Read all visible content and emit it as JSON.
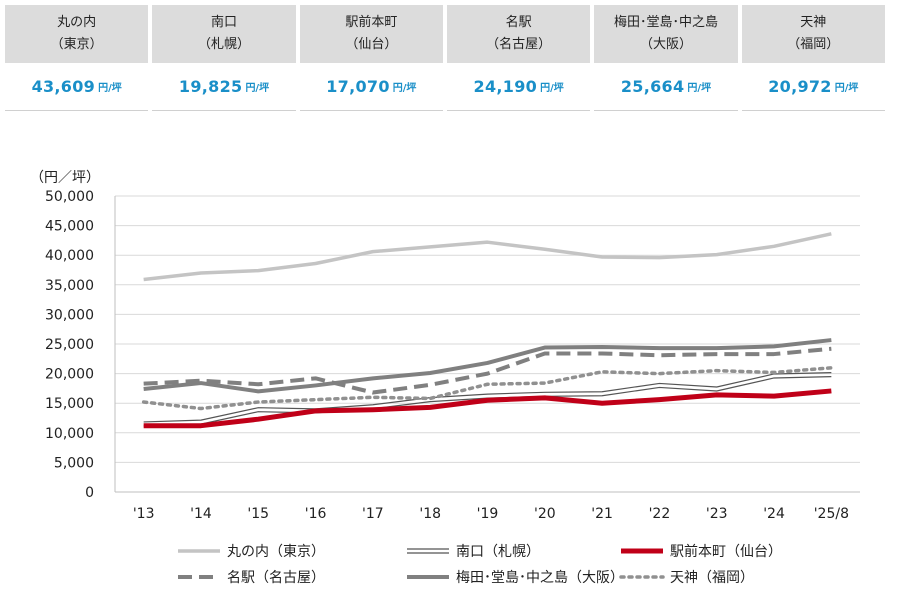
{
  "summary": [
    {
      "area": "丸の内",
      "city": "（東京）",
      "price": "43,609",
      "unit": "円/坪"
    },
    {
      "area": "南口",
      "city": "（札幌）",
      "price": "19,825",
      "unit": "円/坪"
    },
    {
      "area": "駅前本町",
      "city": "（仙台）",
      "price": "17,070",
      "unit": "円/坪"
    },
    {
      "area": "名駅",
      "city": "（名古屋）",
      "price": "24,190",
      "unit": "円/坪"
    },
    {
      "area": "梅田･堂島･中之島",
      "city": "（大阪）",
      "price": "25,664",
      "unit": "円/坪"
    },
    {
      "area": "天神",
      "city": "（福岡）",
      "price": "20,972",
      "unit": "円/坪"
    }
  ],
  "chart_data": {
    "type": "line",
    "ylabel": "（円／坪）",
    "ylim": [
      0,
      50000
    ],
    "yticks": [
      "0",
      "5,000",
      "10,000",
      "15,000",
      "20,000",
      "25,000",
      "30,000",
      "35,000",
      "40,000",
      "45,000",
      "50,000"
    ],
    "categories": [
      "'13",
      "'14",
      "'15",
      "'16",
      "'17",
      "'18",
      "'19",
      "'20",
      "'21",
      "'22",
      "'23",
      "'24",
      "'25/8"
    ],
    "grid": true,
    "series": [
      {
        "name": "丸の内（東京）",
        "style": "solid",
        "color": "#c4c4c4",
        "values": [
          35900,
          37000,
          37400,
          38600,
          40600,
          41400,
          42200,
          41000,
          39700,
          39600,
          40100,
          41500,
          43609
        ]
      },
      {
        "name": "南口（札幌）",
        "style": "double",
        "color": "#555555",
        "values": [
          11500,
          11800,
          13900,
          13700,
          14400,
          15600,
          16200,
          16500,
          16600,
          18000,
          17400,
          19600,
          19825
        ]
      },
      {
        "name": "駅前本町（仙台）",
        "style": "solid",
        "color": "#c00018",
        "values": [
          11200,
          11200,
          12300,
          13700,
          13900,
          14300,
          15500,
          15900,
          15000,
          15600,
          16400,
          16200,
          17070
        ]
      },
      {
        "name": "名駅（名古屋）",
        "style": "dashed",
        "color": "#808080",
        "values": [
          18300,
          18800,
          18200,
          19200,
          16800,
          18100,
          20000,
          23400,
          23400,
          23100,
          23300,
          23300,
          24190
        ]
      },
      {
        "name": "梅田･堂島･中之島（大阪）",
        "style": "solid",
        "color": "#808080",
        "values": [
          17400,
          18400,
          17000,
          18000,
          19200,
          20100,
          21800,
          24400,
          24500,
          24300,
          24300,
          24600,
          25664
        ]
      },
      {
        "name": "天神（福岡）",
        "style": "dotted",
        "color": "#909090",
        "values": [
          15200,
          14100,
          15200,
          15600,
          16000,
          15800,
          18200,
          18400,
          20300,
          20000,
          20500,
          20200,
          20972
        ]
      }
    ]
  }
}
